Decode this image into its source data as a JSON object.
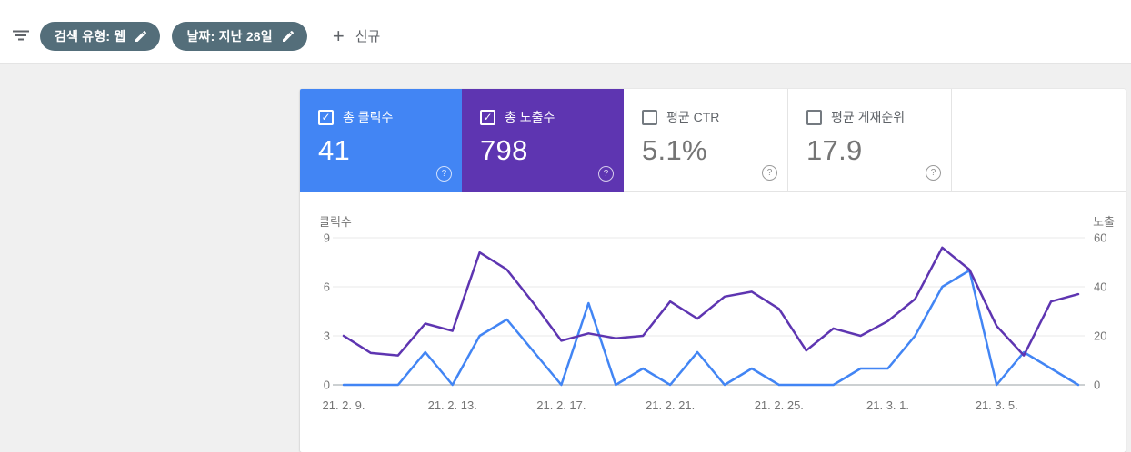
{
  "topbar": {
    "filter_icon": "filter-list-icon",
    "chips": [
      {
        "label": "검색 유형: 웹",
        "edit_icon": "pencil-edit-icon"
      },
      {
        "label": "날짜: 지난 28일",
        "edit_icon": "pencil-edit-icon"
      }
    ],
    "new_plus": "+",
    "new_label": "신규"
  },
  "tiles": [
    {
      "id": "clicks",
      "label": "총 클릭수",
      "value": "41",
      "checked": true,
      "color": "#4285f4",
      "help_icon": "help-circle-icon"
    },
    {
      "id": "impressions",
      "label": "총 노출수",
      "value": "798",
      "checked": true,
      "color": "#5e35b1",
      "help_icon": "help-circle-icon"
    },
    {
      "id": "ctr",
      "label": "평균 CTR",
      "value": "5.1%",
      "checked": false,
      "color": "#ffffff",
      "help_icon": "help-circle-icon"
    },
    {
      "id": "position",
      "label": "평균 게재순위",
      "value": "17.9",
      "checked": false,
      "color": "#ffffff",
      "help_icon": "help-circle-icon"
    }
  ],
  "checkmark_glyph": "✓",
  "help_glyph": "?",
  "colors": {
    "clicks_blue": "#4285f4",
    "impressions_purple": "#5e35b1",
    "chip_background": "#546e7a",
    "grid_line": "#e8e8e8",
    "axis_line": "#9aa0a6",
    "axis_text": "#757575"
  },
  "chart_data": {
    "type": "line",
    "x": [
      "21. 2. 9.",
      "21. 2. 10.",
      "21. 2. 11.",
      "21. 2. 12.",
      "21. 2. 13.",
      "21. 2. 14.",
      "21. 2. 15.",
      "21. 2. 16.",
      "21. 2. 17.",
      "21. 2. 18.",
      "21. 2. 19.",
      "21. 2. 20.",
      "21. 2. 21.",
      "21. 2. 22.",
      "21. 2. 23.",
      "21. 2. 24.",
      "21. 2. 25.",
      "21. 2. 26.",
      "21. 2. 27.",
      "21. 2. 28.",
      "21. 3. 1.",
      "21. 3. 2.",
      "21. 3. 3.",
      "21. 3. 4.",
      "21. 3. 5.",
      "21. 3. 6.",
      "21. 3. 7.",
      "21. 3. 8."
    ],
    "x_tick_indices": [
      0,
      4,
      8,
      12,
      16,
      20,
      24
    ],
    "series": [
      {
        "id": "clicks",
        "name": "클릭수",
        "axis": "left",
        "color": "#4285f4",
        "values": [
          0,
          0,
          0,
          2,
          0,
          3,
          4,
          2,
          0,
          5,
          0,
          1,
          0,
          2,
          0,
          1,
          0,
          0,
          0,
          1,
          1,
          3,
          6,
          7,
          0,
          2,
          1,
          0
        ]
      },
      {
        "id": "impressions",
        "name": "노출수",
        "axis": "right",
        "color": "#5e35b1",
        "values": [
          20,
          13,
          12,
          25,
          22,
          54,
          47,
          33,
          18,
          21,
          19,
          20,
          34,
          27,
          36,
          38,
          31,
          14,
          23,
          20,
          26,
          35,
          56,
          47,
          24,
          12,
          34,
          37
        ]
      }
    ],
    "left_axis": {
      "title": "클릭수",
      "ticks": [
        0,
        3,
        6,
        9
      ],
      "range": [
        0,
        9
      ]
    },
    "right_axis": {
      "title": "노출",
      "ticks": [
        0,
        20,
        40,
        60
      ],
      "range": [
        0,
        60
      ]
    },
    "grid": true,
    "legend_position": "none"
  }
}
